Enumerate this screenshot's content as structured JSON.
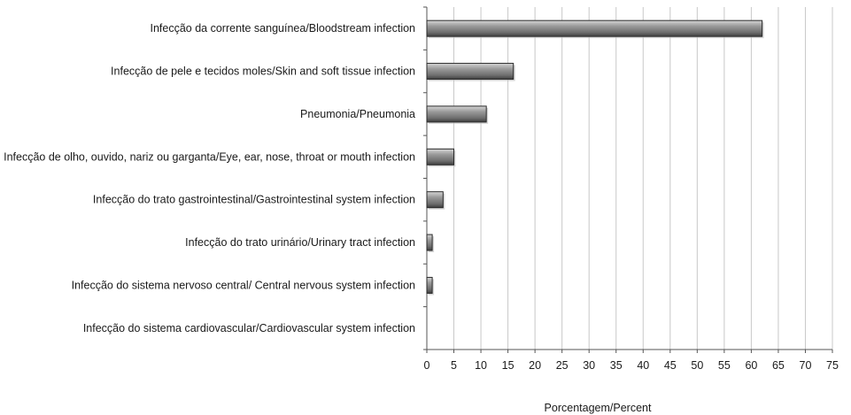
{
  "chart_data": {
    "type": "bar",
    "orientation": "horizontal",
    "categories": [
      "Infecção da corrente sanguínea/Bloodstream infection",
      "Infecção de pele e tecidos moles/Skin and soft tissue infection",
      "Pneumonia/Pneumonia",
      "Infecção de olho, ouvido, nariz ou garganta/Eye, ear, nose, throat or mouth infection",
      "Infecção do trato gastrointestinal/Gastrointestinal system infection",
      "Infecção do trato urinário/Urinary tract infection",
      "Infecção do sistema nervoso central/ Central nervous system infection",
      "Infecção do sistema cardiovascular/Cardiovascular system infection"
    ],
    "values": [
      62,
      16,
      11,
      5,
      3,
      1,
      1,
      0
    ],
    "xlabel": "Porcentagem/Percent",
    "ylabel": "",
    "xlim": [
      0,
      75
    ],
    "xticks": [
      0,
      5,
      10,
      15,
      20,
      25,
      30,
      35,
      40,
      45,
      50,
      55,
      60,
      65,
      70,
      75
    ],
    "grid": "vertical",
    "legend": "none",
    "colors": {
      "bar_fill": "#7a7a7a",
      "bar_stroke": "#2a2a2a",
      "grid": "#c8c8c8",
      "axis": "#555555"
    }
  }
}
